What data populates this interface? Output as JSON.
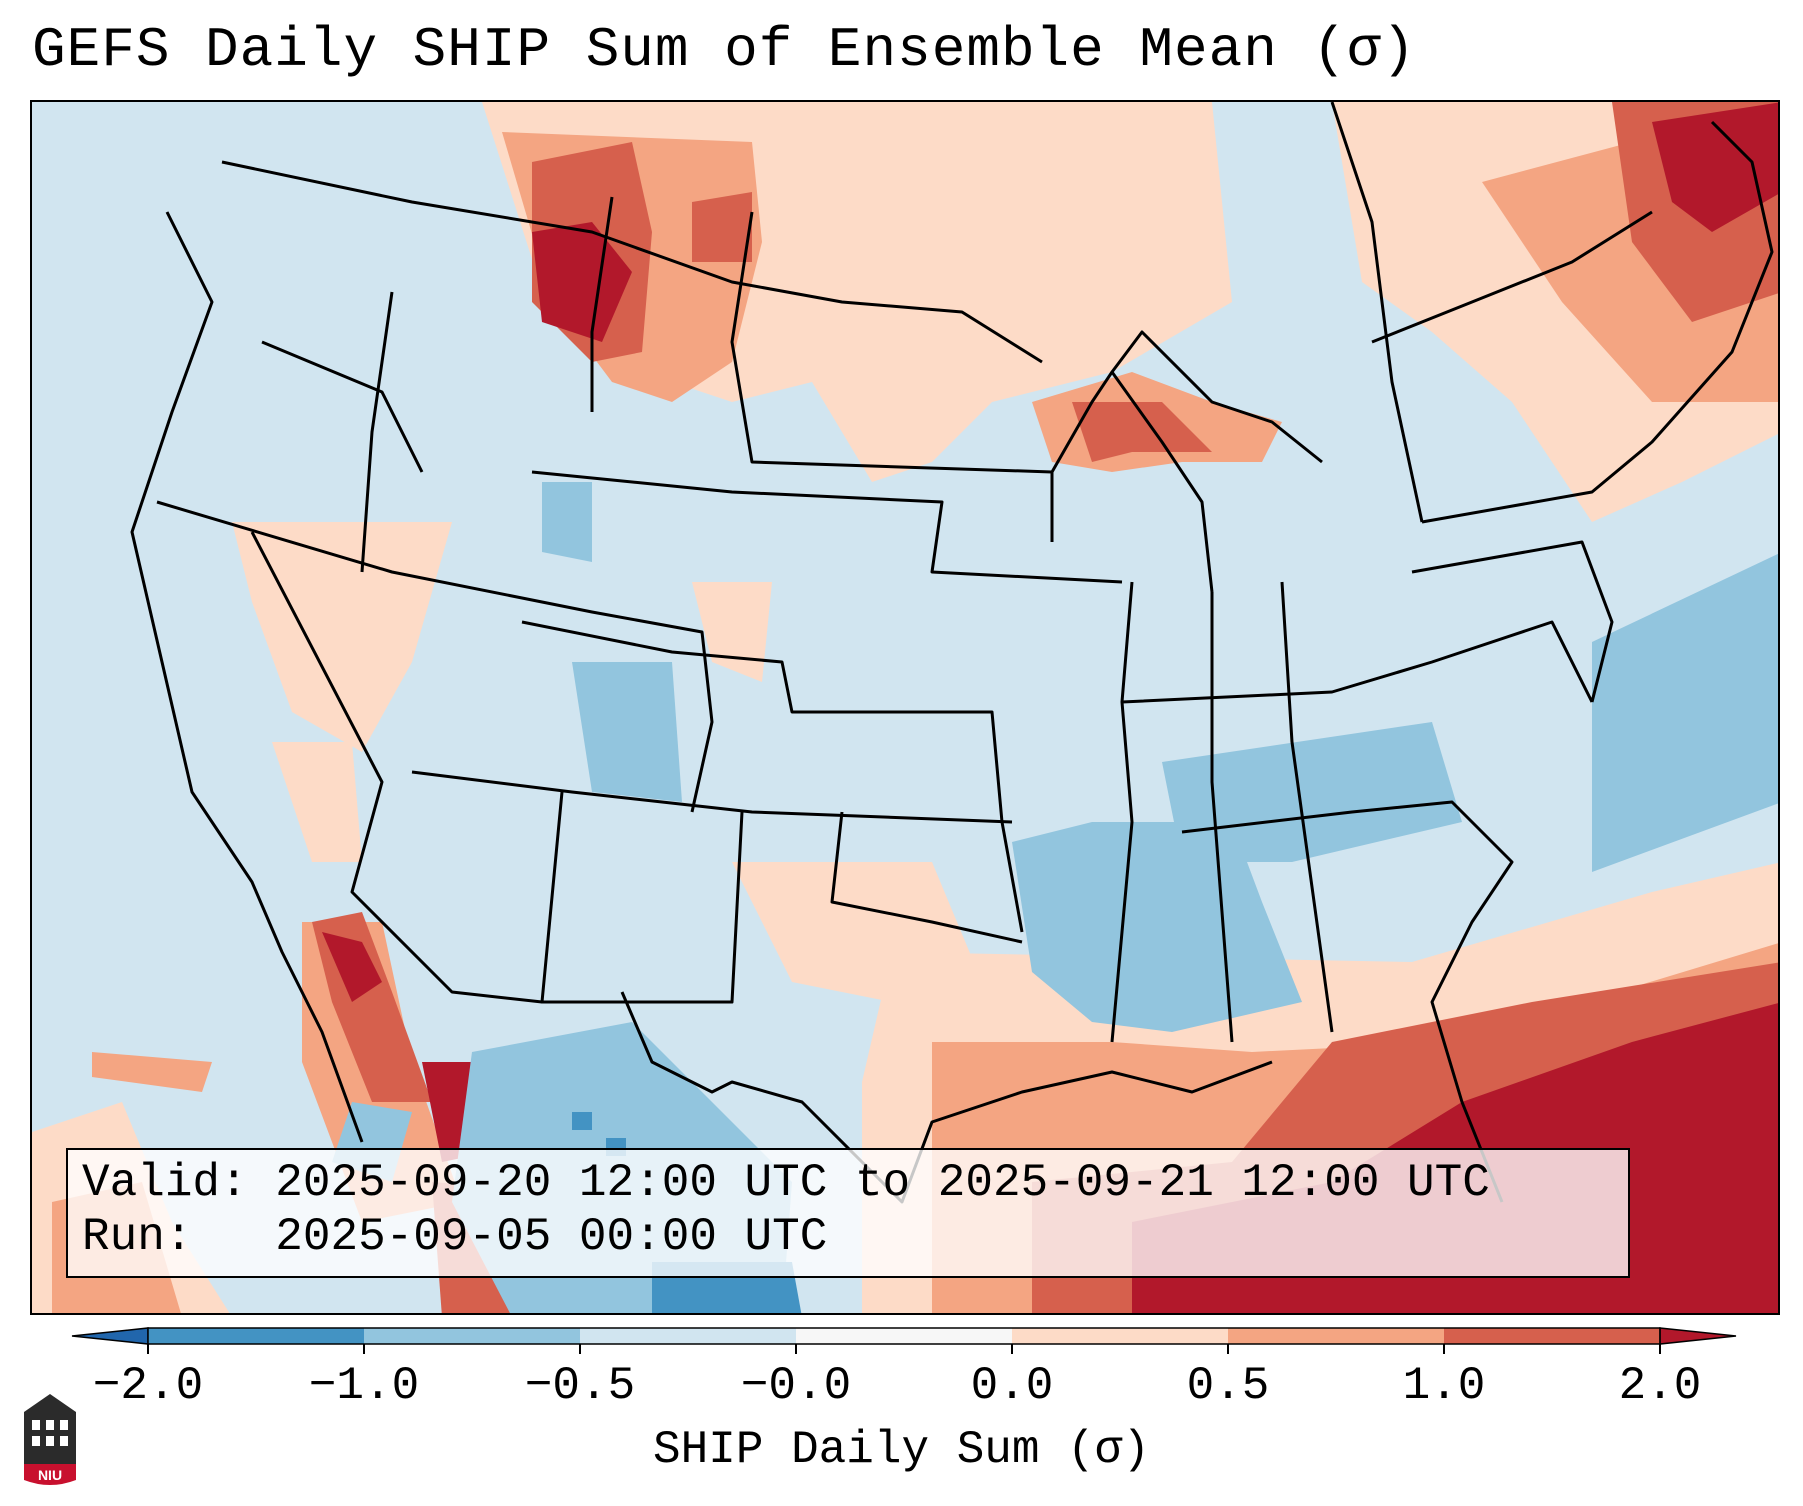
{
  "title": "GEFS Daily SHIP Sum of Ensemble Mean (σ)",
  "info": {
    "valid_label": "Valid:",
    "valid_value": "2025-09-20 12:00 UTC to 2025-09-21 12:00 UTC",
    "run_label": "Run:",
    "run_value": "2025-09-05 00:00 UTC"
  },
  "colorbar": {
    "label": "SHIP Daily Sum (σ)",
    "ticks": [
      "−2.0",
      "−1.0",
      "−0.5",
      "−0.0",
      "0.0",
      "0.5",
      "1.0",
      "2.0"
    ],
    "colors": {
      "lt_-2": "#2166ac",
      "-2_-1": "#4393c3",
      "-1_-0.5": "#92c5de",
      "-0.5_0": "#d1e5f0",
      "zero": "#f7f7f7",
      "0_0.5": "#fddbc7",
      "0.5_1": "#f4a582",
      "1_2": "#d6604d",
      "gt_2": "#b2182b"
    }
  },
  "logo": {
    "text": "NIU",
    "color": "#c8102e"
  }
}
